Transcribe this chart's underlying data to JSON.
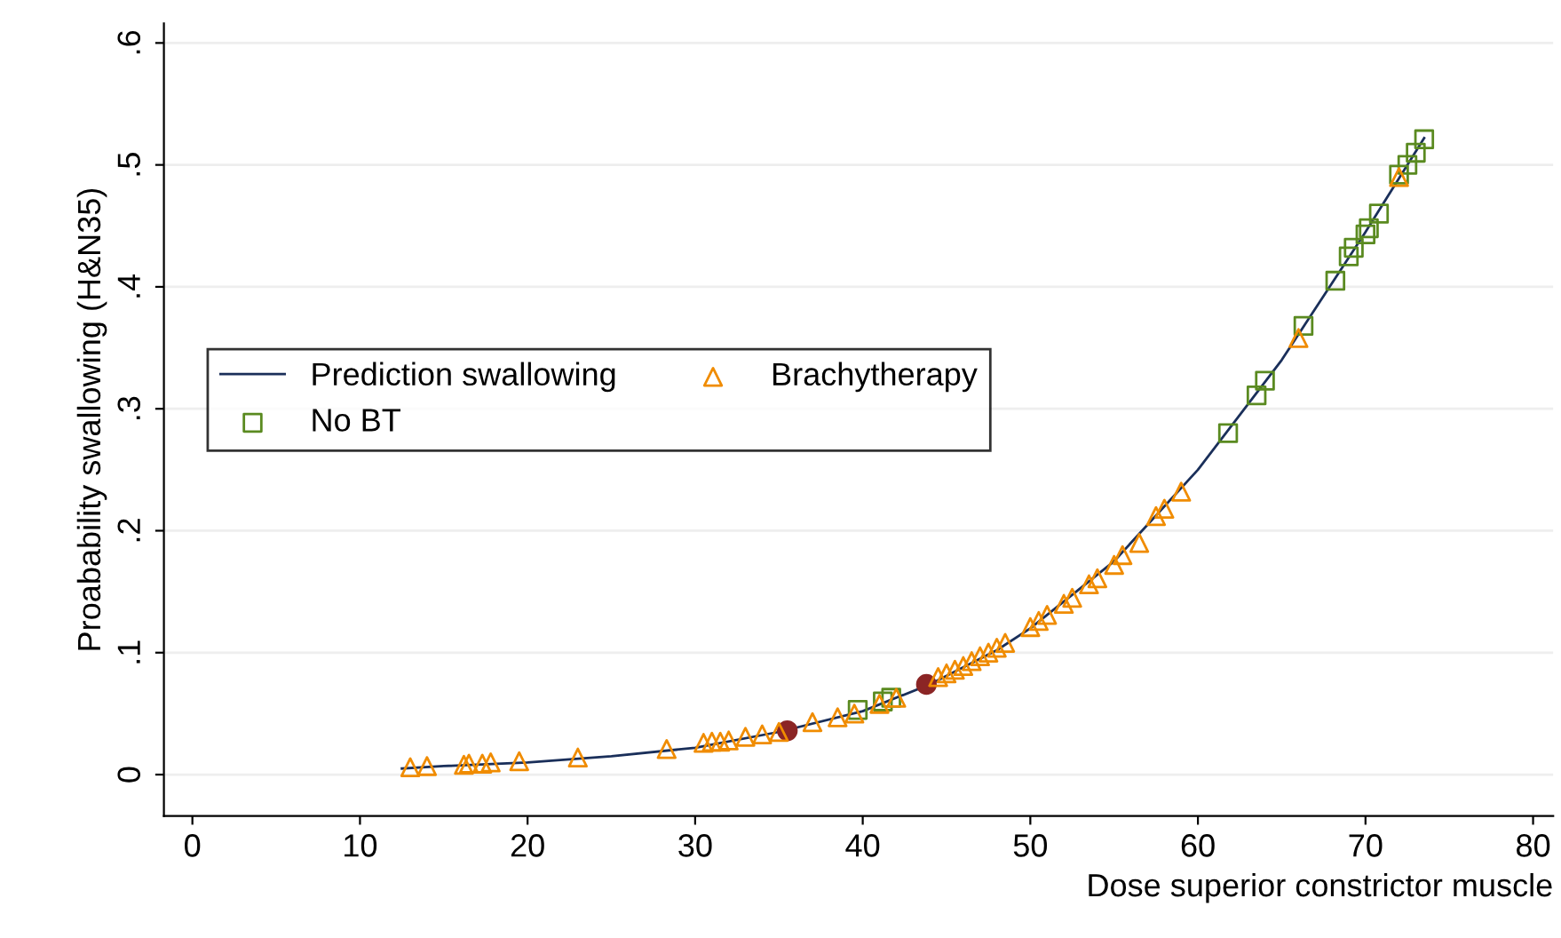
{
  "chart_data": {
    "type": "scatter",
    "xlabel": "Dose superior constrictor muscle",
    "ylabel": "Proabability swallowing (H&N35)",
    "xlim": [
      -1.7,
      81.2
    ],
    "ylim": [
      -0.034,
      0.616
    ],
    "xticks": [
      0,
      10,
      20,
      30,
      40,
      50,
      60,
      70,
      80
    ],
    "yticks": [
      0,
      {
        "value": 0.1,
        "label": ".1"
      },
      {
        "value": 0.2,
        "label": ".2"
      },
      {
        "value": 0.3,
        "label": ".3"
      },
      {
        "value": 0.4,
        "label": ".4"
      },
      {
        "value": 0.5,
        "label": ".5"
      },
      {
        "value": 0.6,
        "label": ".6"
      }
    ],
    "grid": "y",
    "legend": "left",
    "series": [
      {
        "name": "Prediction swallowing",
        "type": "line",
        "marker": "none",
        "color": "#1a2f5a",
        "x": [
          12.5,
          15,
          20,
          25,
          30,
          35,
          40,
          44,
          48,
          50,
          55,
          60,
          65,
          70,
          73.5
        ],
        "values": [
          0.005,
          0.007,
          0.01,
          0.015,
          0.022,
          0.035,
          0.052,
          0.074,
          0.102,
          0.12,
          0.175,
          0.25,
          0.34,
          0.445,
          0.522
        ]
      },
      {
        "name": "No BT",
        "marker": "square",
        "color": "#5a8a20",
        "x": [
          39.7,
          41.2,
          41.7,
          61.8,
          63.5,
          64,
          66.3,
          68.2,
          69,
          69.3,
          70,
          70.2,
          70.8,
          72,
          72.5,
          73,
          73.5
        ],
        "values": [
          0.053,
          0.06,
          0.063,
          0.28,
          0.311,
          0.323,
          0.368,
          0.405,
          0.425,
          0.432,
          0.443,
          0.448,
          0.46,
          0.492,
          0.5,
          0.51,
          0.521
        ]
      },
      {
        "marker": "circle",
        "color": "#8b2525",
        "x": [
          35.5,
          43.8
        ],
        "values": [
          0.036,
          0.074
        ]
      },
      {
        "name": "Brachytherapy",
        "marker": "triangle",
        "color": "#f08c00",
        "x": [
          13,
          14,
          16.2,
          16.5,
          17.3,
          17.8,
          19.5,
          23,
          28.3,
          30.5,
          31,
          31.5,
          32,
          33,
          34,
          35,
          37,
          38.5,
          39.5,
          41,
          42,
          44.5,
          45,
          45.5,
          46,
          46.5,
          47,
          47.5,
          48,
          48.5,
          50,
          50.5,
          51,
          52,
          52.5,
          53.5,
          54,
          55,
          55.5,
          56.5,
          57.5,
          58,
          59,
          66,
          72
        ],
        "values": [
          0.006,
          0.007,
          0.008,
          0.009,
          0.009,
          0.01,
          0.011,
          0.014,
          0.021,
          0.026,
          0.027,
          0.027,
          0.028,
          0.031,
          0.033,
          0.035,
          0.043,
          0.047,
          0.05,
          0.058,
          0.063,
          0.08,
          0.083,
          0.086,
          0.089,
          0.093,
          0.097,
          0.1,
          0.104,
          0.108,
          0.121,
          0.126,
          0.131,
          0.14,
          0.145,
          0.156,
          0.161,
          0.172,
          0.18,
          0.19,
          0.212,
          0.218,
          0.232,
          0.358,
          0.49
        ]
      }
    ]
  }
}
